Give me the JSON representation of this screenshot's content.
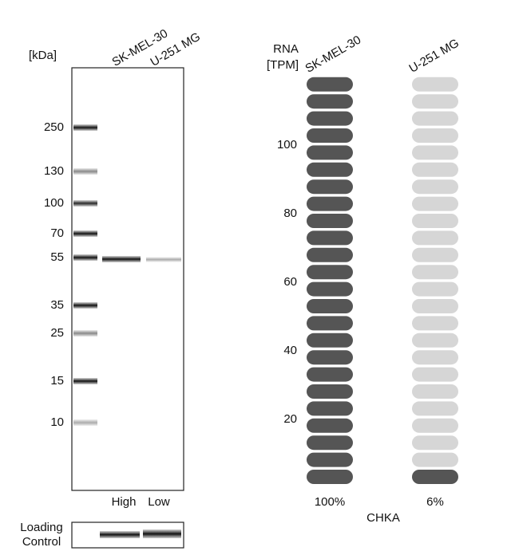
{
  "western_blot": {
    "unit_label": "[kDa]",
    "lanes": [
      "SK-MEL-30",
      "U-251 MG"
    ],
    "markers": [
      "250",
      "130",
      "100",
      "70",
      "55",
      "35",
      "25",
      "15",
      "10"
    ],
    "lane_levels": [
      "High",
      "Low"
    ],
    "loading_control": [
      "Loading",
      "Control"
    ]
  },
  "rna": {
    "axis_label": [
      "RNA",
      "[TPM]"
    ],
    "yticks": [
      20,
      40,
      60,
      80,
      100
    ],
    "samples": [
      {
        "name": "SK-MEL-30",
        "value": 100,
        "label": "100%",
        "color": "#555555"
      },
      {
        "name": "U-251 MG",
        "value": 6,
        "label": "6%",
        "color": "#555555"
      }
    ],
    "gene": "CHKA"
  }
}
